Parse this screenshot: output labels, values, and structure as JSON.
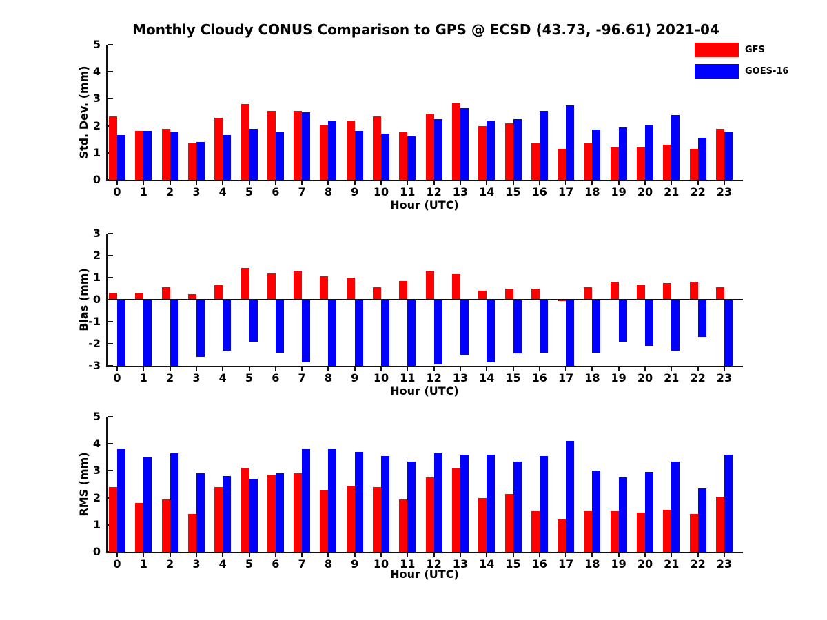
{
  "figure": {
    "title": "Monthly Cloudy CONUS Comparison to GPS @ ECSD (43.73, -96.61) 2021-04"
  },
  "colors": {
    "gfs": "#ff0000",
    "goes16": "#0000ff",
    "axis": "#111111"
  },
  "legend": {
    "items": [
      {
        "label": "GFS",
        "color": "#ff0000"
      },
      {
        "label": "GOES-16",
        "color": "#0000ff"
      }
    ]
  },
  "chart_data": [
    {
      "type": "bar",
      "title": "",
      "ylabel": "Std. Dev. (mm)",
      "xlabel": "Hour (UTC)",
      "categories": [
        "0",
        "1",
        "2",
        "3",
        "4",
        "5",
        "6",
        "7",
        "8",
        "9",
        "10",
        "11",
        "12",
        "13",
        "14",
        "15",
        "16",
        "17",
        "18",
        "19",
        "20",
        "21",
        "22",
        "23"
      ],
      "ylim": [
        0,
        5
      ],
      "yticks": [
        0,
        1,
        2,
        3,
        4,
        5
      ],
      "grid": false,
      "legend_position": "top-right",
      "series": [
        {
          "name": "GFS",
          "color": "#ff0000",
          "values": [
            2.35,
            1.8,
            1.9,
            1.35,
            2.3,
            2.8,
            2.55,
            2.55,
            2.05,
            2.2,
            2.35,
            1.75,
            2.45,
            2.85,
            2.0,
            2.1,
            1.35,
            1.15,
            1.35,
            1.2,
            1.2,
            1.3,
            1.15,
            1.9
          ]
        },
        {
          "name": "GOES-16",
          "color": "#0000ff",
          "values": [
            1.65,
            1.8,
            1.75,
            1.4,
            1.65,
            1.9,
            1.75,
            2.5,
            2.2,
            1.8,
            1.7,
            1.6,
            2.25,
            2.65,
            2.2,
            2.25,
            2.55,
            2.75,
            1.85,
            1.95,
            2.05,
            2.4,
            1.55,
            1.75
          ]
        }
      ]
    },
    {
      "type": "bar",
      "title": "",
      "ylabel": "Bias (mm)",
      "xlabel": "Hour (UTC)",
      "categories": [
        "0",
        "1",
        "2",
        "3",
        "4",
        "5",
        "6",
        "7",
        "8",
        "9",
        "10",
        "11",
        "12",
        "13",
        "14",
        "15",
        "16",
        "17",
        "18",
        "19",
        "20",
        "21",
        "22",
        "23"
      ],
      "ylim": [
        -3,
        3
      ],
      "yticks": [
        3,
        2,
        1,
        0,
        -1,
        -2,
        -3
      ],
      "grid": false,
      "legend_position": "none",
      "series": [
        {
          "name": "GFS",
          "color": "#ff0000",
          "values": [
            0.3,
            0.3,
            0.55,
            0.25,
            0.65,
            1.45,
            1.2,
            1.3,
            1.05,
            1.0,
            0.55,
            0.85,
            1.3,
            1.15,
            0.4,
            0.5,
            0.5,
            -0.05,
            0.55,
            0.8,
            0.7,
            0.75,
            0.8,
            0.55
          ]
        },
        {
          "name": "GOES-16",
          "color": "#0000ff",
          "values": [
            -3.0,
            -3.0,
            -3.0,
            -2.6,
            -2.3,
            -1.9,
            -2.4,
            -2.85,
            -3.0,
            -3.0,
            -3.0,
            -3.0,
            -2.95,
            -2.5,
            -2.85,
            -2.45,
            -2.4,
            -3.0,
            -2.4,
            -1.9,
            -2.1,
            -2.3,
            -1.7,
            -3.0
          ]
        }
      ]
    },
    {
      "type": "bar",
      "title": "",
      "ylabel": "RMS (mm)",
      "xlabel": "Hour (UTC)",
      "categories": [
        "0",
        "1",
        "2",
        "3",
        "4",
        "5",
        "6",
        "7",
        "8",
        "9",
        "10",
        "11",
        "12",
        "13",
        "14",
        "15",
        "16",
        "17",
        "18",
        "19",
        "20",
        "21",
        "22",
        "23"
      ],
      "ylim": [
        0,
        5
      ],
      "yticks": [
        0,
        1,
        2,
        3,
        4,
        5
      ],
      "grid": false,
      "legend_position": "none",
      "series": [
        {
          "name": "GFS",
          "color": "#ff0000",
          "values": [
            2.4,
            1.8,
            1.95,
            1.4,
            2.4,
            3.1,
            2.85,
            2.9,
            2.3,
            2.45,
            2.4,
            1.95,
            2.75,
            3.1,
            2.0,
            2.15,
            1.5,
            1.2,
            1.5,
            1.5,
            1.45,
            1.55,
            1.4,
            2.05
          ]
        },
        {
          "name": "GOES-16",
          "color": "#0000ff",
          "values": [
            3.8,
            3.5,
            3.65,
            2.9,
            2.8,
            2.7,
            2.9,
            3.8,
            3.8,
            3.7,
            3.55,
            3.35,
            3.65,
            3.6,
            3.6,
            3.35,
            3.55,
            4.1,
            3.0,
            2.75,
            2.95,
            3.35,
            2.35,
            3.6
          ]
        }
      ]
    }
  ]
}
